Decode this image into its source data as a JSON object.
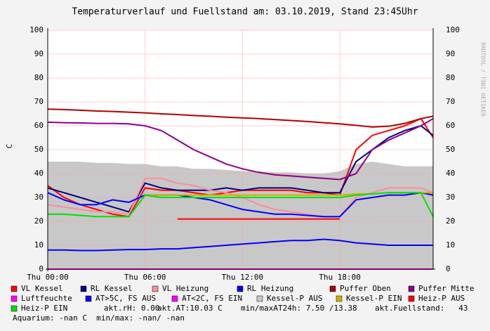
{
  "chart_data": {
    "type": "line",
    "title": "Temperaturverlauf und Fuellstand am: 03.10.2019, Stand 23:45Uhr",
    "y_label": "C",
    "watermark": "RRDTOOL / TOBI OETIKER",
    "x": [
      0,
      1,
      2,
      3,
      4,
      5,
      6,
      7,
      8,
      9,
      10,
      11,
      12,
      13,
      14,
      15,
      16,
      17,
      18,
      19,
      20,
      21,
      22,
      23,
      23.75
    ],
    "xlim": [
      0,
      23.75
    ],
    "xticks": [
      {
        "value": 0,
        "label": "Thu 00:00"
      },
      {
        "value": 6,
        "label": "Thu 06:00"
      },
      {
        "value": 12,
        "label": "Thu 12:00"
      },
      {
        "value": 18,
        "label": "Thu 18:00"
      }
    ],
    "ylim": [
      0,
      100
    ],
    "yticks": [
      0,
      10,
      20,
      30,
      40,
      50,
      60,
      70,
      80,
      90,
      100
    ],
    "grid": true,
    "series": [
      {
        "name": "Kessel-P AUS",
        "color": "#c8c8c8",
        "fill": true,
        "values": [
          45,
          45,
          45,
          44.5,
          44.5,
          44,
          44,
          43,
          43,
          42,
          42,
          41.5,
          41,
          41,
          40.5,
          40.5,
          40,
          40,
          41,
          44,
          45,
          44,
          43,
          43,
          43
        ]
      },
      {
        "name": "VL Kessel",
        "color": "#ff0000",
        "values": [
          35,
          30,
          27,
          25,
          23,
          22,
          34,
          33,
          33,
          32,
          31,
          32,
          33,
          33,
          33,
          33,
          32,
          32,
          31,
          50,
          56,
          58,
          60,
          63,
          55
        ]
      },
      {
        "name": "RL Kessel",
        "color": "#000080",
        "values": [
          34,
          32,
          30,
          28,
          26,
          24,
          36,
          34,
          33,
          33,
          33,
          34,
          33,
          34,
          34,
          34,
          33,
          32,
          32,
          45,
          50,
          55,
          58,
          60,
          56
        ]
      },
      {
        "name": "VL Heizung",
        "color": "#ff8c9c",
        "values": [
          27,
          26,
          25,
          24,
          24,
          23,
          38,
          38,
          36,
          35,
          33,
          32,
          30,
          27,
          25,
          24,
          23,
          22,
          22,
          30,
          32,
          34,
          34,
          34,
          32
        ]
      },
      {
        "name": "RL Heizung",
        "color": "#0000ff",
        "values": [
          32,
          29,
          27,
          27,
          29,
          28,
          31,
          31,
          31,
          30,
          29,
          27,
          25,
          24,
          23,
          23,
          22.5,
          22,
          22,
          29,
          30,
          31,
          31,
          32,
          31
        ]
      },
      {
        "name": "Puffer Oben",
        "color": "#b00000",
        "values": [
          67,
          66.8,
          66.5,
          66.2,
          66,
          65.7,
          65.4,
          65,
          64.7,
          64.3,
          64,
          63.6,
          63.3,
          63,
          62.6,
          62.2,
          61.8,
          61.3,
          60.8,
          60.2,
          59.5,
          59.8,
          61,
          63,
          64
        ]
      },
      {
        "name": "Puffer Mitte",
        "color": "#8b008b",
        "values": [
          61.5,
          61.3,
          61.2,
          61,
          61,
          60.8,
          60,
          58,
          54,
          50,
          47,
          44,
          42,
          40.5,
          39.5,
          39,
          38.5,
          38,
          37.5,
          40,
          50,
          54,
          57,
          60,
          63
        ]
      },
      {
        "name": "Luftfeuchte",
        "color": "#ff00ff",
        "values": [
          0,
          0,
          0,
          0,
          0,
          0,
          0,
          0,
          0,
          0,
          0,
          0,
          0,
          0,
          0,
          0,
          0,
          0,
          0,
          0,
          0,
          0,
          0,
          0,
          0
        ]
      },
      {
        "name": "AT>5C, FS AUS",
        "color": "#0000ff",
        "values": [
          8,
          8,
          7.8,
          7.8,
          8,
          8.2,
          8.2,
          8.5,
          8.5,
          9,
          9.5,
          10,
          10.5,
          11,
          11.5,
          12,
          12,
          12.5,
          12,
          11,
          10.5,
          10,
          10,
          10,
          10
        ]
      },
      {
        "name": "AT<2C, FS EIN",
        "color": "#ff00ff",
        "values": [
          null,
          null,
          null,
          null,
          null,
          null,
          null,
          null,
          null,
          null,
          null,
          null,
          null,
          null,
          null,
          null,
          null,
          null,
          null,
          null,
          null,
          null,
          null,
          null,
          null
        ]
      },
      {
        "name": "Kessel-P EIN",
        "color": "#c8b400",
        "values": [
          null,
          null,
          null,
          null,
          null,
          null,
          31,
          31,
          31,
          31,
          31,
          31,
          31,
          31,
          31,
          31,
          31,
          31,
          31,
          31.5,
          31.5,
          32,
          32,
          32,
          32
        ]
      },
      {
        "name": "Heiz-P AUS",
        "color": "#ff0000",
        "values": [
          null,
          null,
          null,
          null,
          null,
          null,
          null,
          null,
          21,
          21,
          21,
          21,
          21,
          21,
          21,
          21,
          21,
          21,
          21,
          null,
          null,
          null,
          null,
          null,
          null
        ]
      },
      {
        "name": "Heiz-P EIN",
        "color": "#00e000",
        "values": [
          23,
          23,
          22.5,
          22,
          22,
          22,
          31,
          30,
          30,
          30,
          30,
          30,
          30,
          30,
          30,
          30,
          30,
          30,
          30,
          31,
          31.5,
          32,
          32,
          32,
          22
        ]
      }
    ],
    "footer": [
      "akt.rH: 0.00",
      "akt.AT:10.03 C",
      "min/maxAT24h: 7.50 /13.38",
      "akt.Fuellstand:   43",
      "Aquarium: -nan C  min/max: -nan/ -nan"
    ]
  }
}
